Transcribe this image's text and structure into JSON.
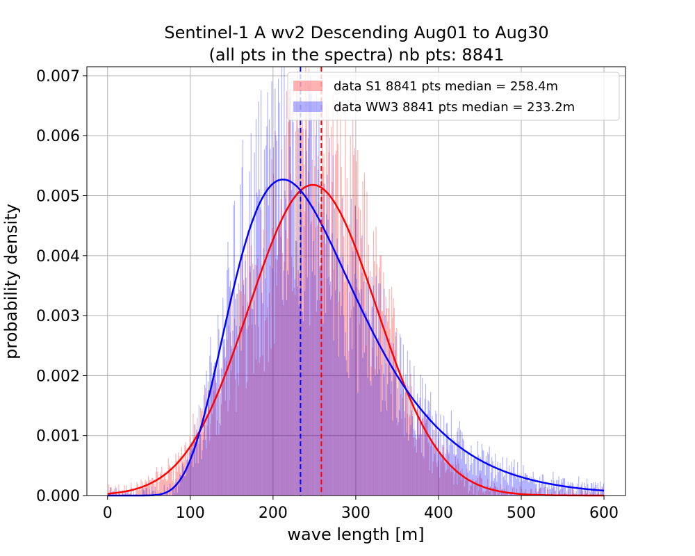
{
  "chart_data": {
    "type": "histogram",
    "title_line1": "Sentinel-1 A wv2 Descending Aug01 to Aug30",
    "title_line2": "(all pts in the spectra) nb pts: 8841",
    "xlabel": "wave length [m]",
    "ylabel": "probability density",
    "xlim": [
      -25,
      626
    ],
    "ylim": [
      0,
      0.00715
    ],
    "xticks": [
      0,
      100,
      200,
      300,
      400,
      500,
      600
    ],
    "xtick_labels": [
      "0",
      "100",
      "200",
      "300",
      "400",
      "500",
      "600"
    ],
    "yticks": [
      0,
      0.001,
      0.002,
      0.003,
      0.004,
      0.005,
      0.006,
      0.007
    ],
    "ytick_labels": [
      "0.000",
      "0.001",
      "0.002",
      "0.003",
      "0.004",
      "0.005",
      "0.006",
      "0.007"
    ],
    "grid": true,
    "legend_position": "top-right",
    "bin_range": [
      0,
      600
    ],
    "bin_width": 1,
    "series": [
      {
        "name": "data S1 8841 pts median = 258.4m",
        "kind": "histogram",
        "color": "#ff0000",
        "alpha": 0.3,
        "median": 258.4,
        "fit": {
          "curve": "normal",
          "mean": 248,
          "std": 77,
          "peak_density": 0.00518,
          "color": "#ff0000"
        }
      },
      {
        "name": "data WW3 8841 pts median = 233.2m",
        "kind": "histogram",
        "color": "#0000ff",
        "alpha": 0.3,
        "median": 233.2,
        "fit": {
          "curve": "lognormal",
          "mode": 212,
          "peak_density": 0.00527,
          "color": "#0000ff"
        }
      }
    ]
  }
}
